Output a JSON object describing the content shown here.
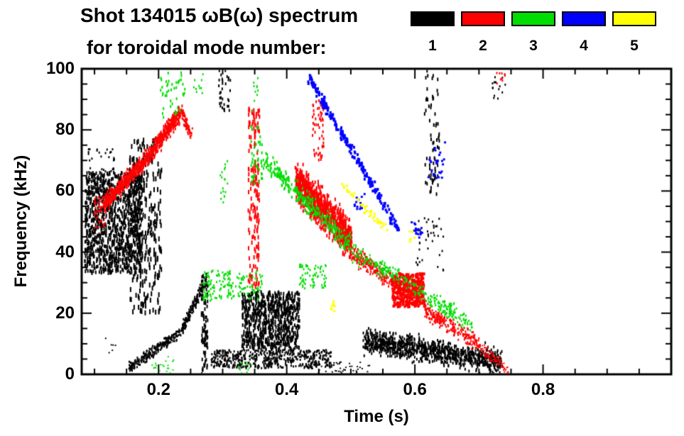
{
  "figure": {
    "background": "#ffffff",
    "frame_color": "#000000"
  },
  "chart_data": {
    "type": "scatter",
    "title": "Shot 134015 ωB(ω) spectrum",
    "subtitle": "for toroidal mode number:",
    "xlabel": "Time (s)",
    "ylabel": "Frequency (kHz)",
    "xlim": [
      0.08,
      1.0
    ],
    "ylim": [
      0,
      100
    ],
    "x_major_ticks": [
      0.2,
      0.4,
      0.6,
      0.8
    ],
    "x_tick_labels": [
      "0.2",
      "0.4",
      "0.6",
      "0.8"
    ],
    "x_minor_step": 0.05,
    "y_major_ticks": [
      0,
      20,
      40,
      60,
      80,
      100
    ],
    "y_tick_labels": [
      "0",
      "20",
      "40",
      "60",
      "80",
      "100"
    ],
    "y_minor_step": 5,
    "grid": false,
    "legend_position": "top-right",
    "legend": [
      {
        "label": "1",
        "color": "#000000"
      },
      {
        "label": "2",
        "color": "#ff0000"
      },
      {
        "label": "3",
        "color": "#00dd00"
      },
      {
        "label": "4",
        "color": "#0000ff"
      },
      {
        "label": "5",
        "color": "#ffff00"
      }
    ],
    "series": [
      {
        "name": "n=1",
        "color": "#000000",
        "clusters": [
          {
            "kind": "blob",
            "t": [
              0.085,
              0.175
            ],
            "f": [
              33,
              66
            ],
            "n": 1100,
            "m": [
              2,
              5
            ]
          },
          {
            "kind": "blob",
            "t": [
              0.09,
              0.135
            ],
            "f": [
              58,
              74
            ],
            "n": 60,
            "m": [
              2,
              3
            ]
          },
          {
            "kind": "blob",
            "t": [
              0.155,
              0.205
            ],
            "f": [
              20,
              78
            ],
            "n": 280,
            "m": [
              2,
              7
            ]
          },
          {
            "kind": "band",
            "from": [
              0.155,
              2
            ],
            "to": [
              0.235,
              14
            ],
            "th": 2.5,
            "n": 240,
            "m": [
              2,
              3
            ]
          },
          {
            "kind": "band",
            "from": [
              0.235,
              14
            ],
            "to": [
              0.275,
              31
            ],
            "th": 2.5,
            "n": 170,
            "m": [
              2,
              3
            ]
          },
          {
            "kind": "blob",
            "t": [
              0.267,
              0.277
            ],
            "f": [
              0,
              33
            ],
            "n": 90,
            "m": [
              2,
              5
            ]
          },
          {
            "kind": "blob",
            "t": [
              0.33,
              0.42
            ],
            "f": [
              8,
              27
            ],
            "n": 750,
            "m": [
              2,
              5
            ]
          },
          {
            "kind": "blob",
            "t": [
              0.282,
              0.47
            ],
            "f": [
              2,
              8
            ],
            "n": 550,
            "m": [
              2,
              3
            ]
          },
          {
            "kind": "band",
            "from": [
              0.52,
              11
            ],
            "to": [
              0.735,
              4
            ],
            "th": 5.5,
            "n": 1000,
            "m": [
              2,
              4
            ]
          },
          {
            "kind": "blob",
            "t": [
              0.293,
              0.312
            ],
            "f": [
              86,
              101
            ],
            "n": 35,
            "m": [
              2,
              4
            ]
          },
          {
            "kind": "blob",
            "t": [
              0.615,
              0.638
            ],
            "f": [
              58,
              101
            ],
            "n": 70,
            "m": [
              2,
              5
            ]
          },
          {
            "kind": "blob",
            "t": [
              0.72,
              0.742
            ],
            "f": [
              90,
              98
            ],
            "n": 14,
            "m": [
              2,
              3
            ]
          },
          {
            "kind": "blob",
            "t": [
              0.6,
              0.645
            ],
            "f": [
              34,
              52
            ],
            "n": 40,
            "m": [
              2,
              3
            ]
          },
          {
            "kind": "blob",
            "t": [
              0.063,
              0.082
            ],
            "f": [
              4,
              10
            ],
            "n": 8,
            "m": [
              2,
              2
            ]
          },
          {
            "kind": "blob",
            "t": [
              0.105,
              0.135
            ],
            "f": [
              7,
              13
            ],
            "n": 6,
            "m": [
              2,
              2
            ]
          },
          {
            "kind": "blob",
            "t": [
              0.44,
              0.53
            ],
            "f": [
              0,
              4
            ],
            "n": 50,
            "m": [
              2,
              2
            ]
          }
        ]
      },
      {
        "name": "n=2",
        "color": "#ff0000",
        "clusters": [
          {
            "kind": "blob",
            "t": [
              0.1,
              0.118
            ],
            "f": [
              48,
              58
            ],
            "n": 45,
            "m": [
              2,
              3
            ]
          },
          {
            "kind": "band",
            "from": [
              0.115,
              56
            ],
            "to": [
              0.175,
              69
            ],
            "th": 4,
            "n": 380,
            "m": [
              2,
              4
            ]
          },
          {
            "kind": "band",
            "from": [
              0.175,
              69
            ],
            "to": [
              0.235,
              86
            ],
            "th": 4,
            "n": 380,
            "m": [
              2,
              4
            ]
          },
          {
            "kind": "band",
            "from": [
              0.235,
              86
            ],
            "to": [
              0.252,
              78
            ],
            "th": 3,
            "n": 70,
            "m": [
              2,
              3
            ]
          },
          {
            "kind": "blob",
            "t": [
              0.34,
              0.358
            ],
            "f": [
              28,
              87
            ],
            "n": 160,
            "m": [
              2,
              6
            ]
          },
          {
            "kind": "band",
            "from": [
              0.415,
              63
            ],
            "to": [
              0.5,
              44
            ],
            "th": 9,
            "n": 950,
            "m": [
              2,
              5
            ]
          },
          {
            "kind": "band",
            "from": [
              0.5,
              40
            ],
            "to": [
              0.585,
              27
            ],
            "th": 4,
            "n": 260,
            "m": [
              2,
              3
            ]
          },
          {
            "kind": "blob",
            "t": [
              0.565,
              0.615
            ],
            "f": [
              22,
              33
            ],
            "n": 380,
            "m": [
              3,
              4
            ]
          },
          {
            "kind": "band",
            "from": [
              0.615,
              21
            ],
            "to": [
              0.7,
              10
            ],
            "th": 4,
            "n": 230,
            "m": [
              2,
              3
            ]
          },
          {
            "kind": "band",
            "from": [
              0.7,
              9
            ],
            "to": [
              0.748,
              1
            ],
            "th": 3,
            "n": 90,
            "m": [
              2,
              2
            ]
          },
          {
            "kind": "blob",
            "t": [
              0.725,
              0.742
            ],
            "f": [
              93,
              99
            ],
            "n": 10,
            "m": [
              2,
              3
            ]
          },
          {
            "kind": "blob",
            "t": [
              0.44,
              0.458
            ],
            "f": [
              70,
              90
            ],
            "n": 55,
            "m": [
              2,
              4
            ]
          }
        ]
      },
      {
        "name": "n=3",
        "color": "#00dd00",
        "clusters": [
          {
            "kind": "blob",
            "t": [
              0.203,
              0.242
            ],
            "f": [
              84,
              101
            ],
            "n": 45,
            "m": [
              2,
              4
            ]
          },
          {
            "kind": "blob",
            "t": [
              0.255,
              0.272
            ],
            "f": [
              92,
              99
            ],
            "n": 10,
            "m": [
              2,
              3
            ]
          },
          {
            "kind": "blob",
            "t": [
              0.344,
              0.362
            ],
            "f": [
              62,
              82
            ],
            "n": 45,
            "m": [
              2,
              4
            ]
          },
          {
            "kind": "blob",
            "t": [
              0.345,
              0.356
            ],
            "f": [
              86,
              97
            ],
            "n": 10,
            "m": [
              2,
              3
            ]
          },
          {
            "kind": "band",
            "from": [
              0.365,
              70
            ],
            "to": [
              0.5,
              42
            ],
            "th": 5,
            "n": 300,
            "m": [
              2,
              4
            ]
          },
          {
            "kind": "band",
            "from": [
              0.5,
              40
            ],
            "to": [
              0.6,
              29
            ],
            "th": 4,
            "n": 150,
            "m": [
              2,
              3
            ]
          },
          {
            "kind": "band",
            "from": [
              0.6,
              28
            ],
            "to": [
              0.69,
              16
            ],
            "th": 4,
            "n": 130,
            "m": [
              2,
              3
            ]
          },
          {
            "kind": "blob",
            "t": [
              0.268,
              0.362
            ],
            "f": [
              24,
              34
            ],
            "n": 170,
            "m": [
              2,
              3
            ]
          },
          {
            "kind": "blob",
            "t": [
              0.19,
              0.225
            ],
            "f": [
              0,
              6
            ],
            "n": 22,
            "m": [
              2,
              2
            ]
          },
          {
            "kind": "blob",
            "t": [
              0.325,
              0.345
            ],
            "f": [
              0,
              4
            ],
            "n": 14,
            "m": [
              2,
              2
            ]
          },
          {
            "kind": "blob",
            "t": [
              0.42,
              0.462
            ],
            "f": [
              28,
              36
            ],
            "n": 70,
            "m": [
              2,
              3
            ]
          },
          {
            "kind": "blob",
            "t": [
              0.295,
              0.308
            ],
            "f": [
              55,
              70
            ],
            "n": 18,
            "m": [
              2,
              3
            ]
          },
          {
            "kind": "blob",
            "t": [
              0.635,
              0.665
            ],
            "f": [
              18,
              24
            ],
            "n": 20,
            "m": [
              2,
              3
            ]
          }
        ]
      },
      {
        "name": "n=4",
        "color": "#0000ff",
        "clusters": [
          {
            "kind": "band",
            "from": [
              0.435,
              97
            ],
            "to": [
              0.575,
              47
            ],
            "th": 2.5,
            "n": 240,
            "m": [
              3,
              4
            ]
          },
          {
            "kind": "blob",
            "t": [
              0.595,
              0.612
            ],
            "f": [
              44,
              50
            ],
            "n": 18,
            "m": [
              3,
              3
            ]
          },
          {
            "kind": "blob",
            "t": [
              0.62,
              0.648
            ],
            "f": [
              64,
              76
            ],
            "n": 26,
            "m": [
              3,
              3
            ]
          },
          {
            "kind": "blob",
            "t": [
              0.505,
              0.522
            ],
            "f": [
              54,
              59
            ],
            "n": 14,
            "m": [
              3,
              3
            ]
          }
        ]
      },
      {
        "name": "n=5",
        "color": "#ffff00",
        "clusters": [
          {
            "kind": "band",
            "from": [
              0.487,
              62
            ],
            "to": [
              0.557,
              47
            ],
            "th": 2,
            "n": 45,
            "m": [
              3,
              3
            ]
          },
          {
            "kind": "blob",
            "t": [
              0.463,
              0.475
            ],
            "f": [
              20,
              24
            ],
            "n": 8,
            "m": [
              3,
              3
            ]
          },
          {
            "kind": "blob",
            "t": [
              0.59,
              0.603
            ],
            "f": [
              43,
              47
            ],
            "n": 6,
            "m": [
              3,
              3
            ]
          }
        ]
      }
    ]
  }
}
